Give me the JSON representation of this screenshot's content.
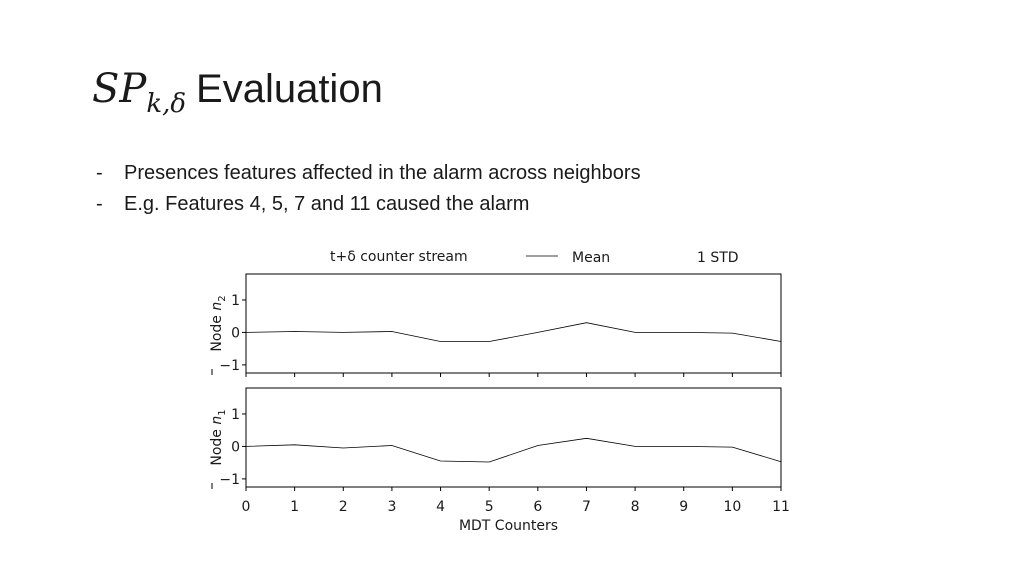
{
  "slide": {
    "title_math": "SP",
    "title_subscript": "k,δ",
    "title_text": "Evaluation",
    "bullets": [
      "Presences features affected in the alarm across neighbors",
      "E.g. Features 4, 5, 7 and 11 caused the alarm"
    ],
    "bullet_marker": "-"
  },
  "chart_data": {
    "type": "line",
    "legend": {
      "entries": [
        "t+δ counter stream",
        "Mean",
        "1 STD"
      ],
      "placement": "top"
    },
    "xlabel": "MDT Counters",
    "x": [
      0,
      1,
      2,
      3,
      4,
      5,
      6,
      7,
      8,
      9,
      10,
      11
    ],
    "xlim": [
      0,
      11
    ],
    "colors": {
      "line": "#000000",
      "frame": "#000000"
    },
    "subplots": [
      {
        "ylabel": "Node n2",
        "ylabel_prefix": "Node ",
        "ylabel_var": "n",
        "ylabel_sub": "2",
        "ylim": [
          -1.25,
          1.8
        ],
        "yticks": [
          -1,
          0,
          1
        ],
        "ytick_labels": [
          "−1",
          "0",
          "1"
        ],
        "series": [
          {
            "name": "Mean",
            "values": [
              0.0,
              0.03,
              0.0,
              0.03,
              -0.28,
              -0.28,
              0.0,
              0.3,
              0.0,
              0.0,
              -0.02,
              -0.28
            ]
          }
        ]
      },
      {
        "ylabel": "Node n1",
        "ylabel_prefix": "Node ",
        "ylabel_var": "n",
        "ylabel_sub": "1",
        "ylim": [
          -1.25,
          1.8
        ],
        "yticks": [
          -1,
          0,
          1
        ],
        "ytick_labels": [
          "−1",
          "0",
          "1"
        ],
        "series": [
          {
            "name": "Mean",
            "values": [
              0.0,
              0.05,
              -0.05,
              0.03,
              -0.45,
              -0.48,
              0.03,
              0.25,
              0.0,
              0.0,
              -0.02,
              -0.47
            ]
          }
        ]
      }
    ],
    "xtick_labels": [
      "0",
      "1",
      "2",
      "3",
      "4",
      "5",
      "6",
      "7",
      "8",
      "9",
      "10",
      "11"
    ]
  }
}
